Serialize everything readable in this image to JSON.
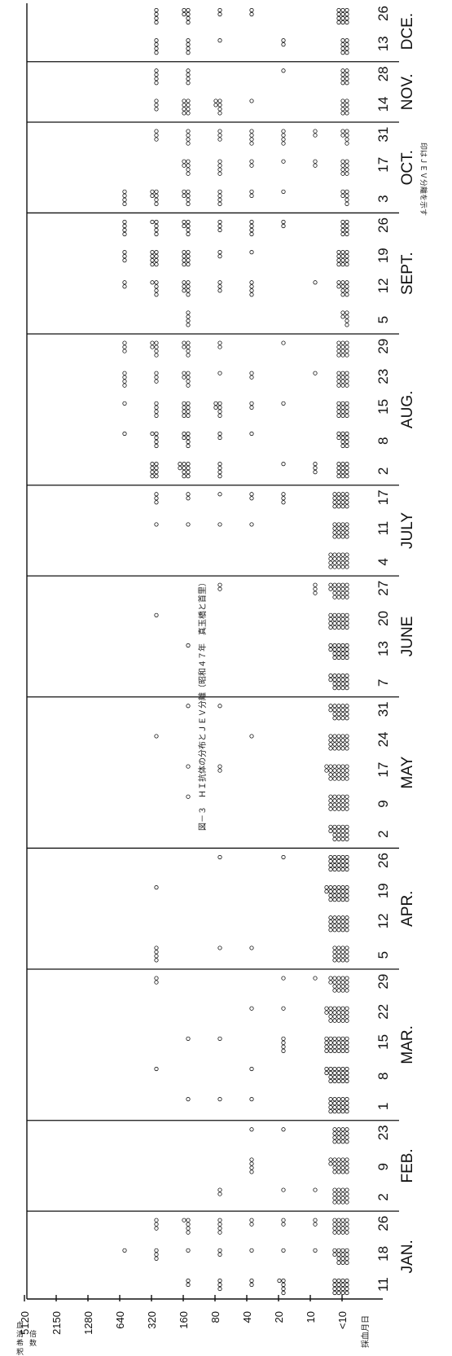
{
  "page": {
    "title": "図－３　ＨＩ抗体の分布とＪＥＶ分離（昭和４７年　真玉橋と首里）",
    "jev_note": "印はＪＥＶ分離を示す",
    "xlabel": "採血月日",
    "ylabel_chars": [
      "血",
      "清",
      "希",
      "釈",
      "倍",
      "数"
    ]
  },
  "chart_data": {
    "type": "scatter",
    "title": "図－３　ＨＩ抗体の分布とＪＥＶ分離（昭和４７年　真玉橋と首里）",
    "xlabel": "採血月日",
    "ylabel": "血清希釈倍数",
    "ytick_labels": [
      "<10",
      "10",
      "20",
      "40",
      "80",
      "160",
      "320",
      "640",
      "1280",
      "2150",
      "5120"
    ],
    "months": [
      {
        "label": "JAN.",
        "days": [
          "11",
          "18",
          "26"
        ]
      },
      {
        "label": "FEB.",
        "days": [
          "2",
          "9",
          "23"
        ]
      },
      {
        "label": "MAR.",
        "days": [
          "1",
          "8",
          "15",
          "22",
          "29"
        ]
      },
      {
        "label": "APR.",
        "days": [
          "5",
          "12",
          "19",
          "26"
        ]
      },
      {
        "label": "MAY",
        "days": [
          "2",
          "9",
          "17",
          "24",
          "31"
        ]
      },
      {
        "label": "JUNE",
        "days": [
          "7",
          "13",
          "20",
          "27"
        ]
      },
      {
        "label": "JULY",
        "days": [
          "4",
          "11",
          "17"
        ]
      },
      {
        "label": "AUG.",
        "days": [
          "2",
          "8",
          "15",
          "23",
          "29"
        ]
      },
      {
        "label": "SEPT.",
        "days": [
          "5",
          "12",
          "19",
          "26"
        ]
      },
      {
        "label": "OCT.",
        "days": [
          "3",
          "17",
          "31"
        ]
      },
      {
        "label": "NOV.",
        "days": [
          "14",
          "28"
        ]
      },
      {
        "label": "DCE.",
        "days": [
          "13",
          "26"
        ]
      }
    ],
    "grid": "vertical lines between months",
    "counts_note": "counts of sera per titer per sampling date (approximate)",
    "dates": [
      {
        "date": "JAN. 11",
        "counts": {
          "<10": 16,
          "10": 0,
          "20": 5,
          "40": 2,
          "80": 3,
          "160": 2,
          "320": 0,
          "640": 0
        }
      },
      {
        "date": "JAN. 18",
        "counts": {
          "<10": 14,
          "10": 1,
          "20": 1,
          "40": 1,
          "80": 2,
          "160": 1,
          "320": 3,
          "640": 1
        }
      },
      {
        "date": "JAN. 26",
        "counts": {
          "<10": 16,
          "10": 2,
          "20": 2,
          "40": 2,
          "80": 4,
          "160": 5,
          "320": 3,
          "640": 0
        }
      },
      {
        "date": "FEB. 2",
        "counts": {
          "<10": 16,
          "10": 1,
          "20": 1,
          "40": 0,
          "80": 2,
          "160": 0,
          "320": 0,
          "640": 0
        }
      },
      {
        "date": "FEB. 9",
        "counts": {
          "<10": 18,
          "10": 0,
          "20": 0,
          "40": 4,
          "80": 0,
          "160": 0,
          "320": 0,
          "640": 0
        }
      },
      {
        "date": "FEB. 23",
        "counts": {
          "<10": 16,
          "10": 0,
          "20": 1,
          "40": 1,
          "80": 0,
          "160": 0,
          "320": 0,
          "640": 0
        }
      },
      {
        "date": "MAR. 1",
        "counts": {
          "<10": 20,
          "10": 0,
          "20": 0,
          "40": 1,
          "80": 1,
          "160": 1,
          "320": 0,
          "640": 0
        }
      },
      {
        "date": "MAR. 8",
        "counts": {
          "<10": 22,
          "10": 0,
          "20": 0,
          "40": 1,
          "80": 0,
          "160": 0,
          "320": 1,
          "640": 0
        }
      },
      {
        "date": "MAR. 15",
        "counts": {
          "<10": 24,
          "10": 0,
          "20": 4,
          "40": 0,
          "80": 1,
          "160": 1,
          "320": 0,
          "640": 0
        }
      },
      {
        "date": "MAR. 22",
        "counts": {
          "<10": 22,
          "10": 0,
          "20": 1,
          "40": 1,
          "80": 0,
          "160": 0,
          "320": 0,
          "640": 0
        }
      },
      {
        "date": "MAR. 29",
        "counts": {
          "<10": 18,
          "10": 1,
          "20": 1,
          "40": 0,
          "80": 0,
          "160": 0,
          "320": 2,
          "640": 0
        }
      },
      {
        "date": "APR. 5",
        "counts": {
          "<10": 16,
          "10": 0,
          "20": 0,
          "40": 1,
          "80": 1,
          "160": 0,
          "320": 4,
          "640": 0
        }
      },
      {
        "date": "APR. 12",
        "counts": {
          "<10": 20,
          "10": 0,
          "20": 0,
          "40": 0,
          "80": 0,
          "160": 0,
          "320": 0,
          "640": 0
        }
      },
      {
        "date": "APR. 19",
        "counts": {
          "<10": 22,
          "10": 0,
          "20": 0,
          "40": 0,
          "80": 0,
          "160": 0,
          "320": 1,
          "640": 0
        }
      },
      {
        "date": "APR. 26",
        "counts": {
          "<10": 20,
          "10": 0,
          "20": 1,
          "40": 0,
          "80": 1,
          "160": 0,
          "320": 0,
          "640": 0
        }
      },
      {
        "date": "MAY 2",
        "counts": {
          "<10": 18,
          "10": 0,
          "20": 0,
          "40": 0,
          "80": 0,
          "160": 0,
          "320": 0,
          "640": 0
        }
      },
      {
        "date": "MAY 9",
        "counts": {
          "<10": 20,
          "10": 0,
          "20": 0,
          "40": 0,
          "80": 0,
          "160": 1,
          "320": 0,
          "640": 0
        }
      },
      {
        "date": "MAY 17",
        "counts": {
          "<10": 22,
          "10": 0,
          "20": 0,
          "40": 0,
          "80": 2,
          "160": 1,
          "320": 0,
          "640": 0
        }
      },
      {
        "date": "MAY 24",
        "counts": {
          "<10": 20,
          "10": 0,
          "20": 0,
          "40": 1,
          "80": 0,
          "160": 0,
          "320": 1,
          "640": 0
        }
      },
      {
        "date": "MAY 31",
        "counts": {
          "<10": 18,
          "10": 0,
          "20": 0,
          "40": 0,
          "80": 1,
          "160": 1,
          "320": 0,
          "640": 0
        }
      },
      {
        "date": "JUNE 7",
        "counts": {
          "<10": 18,
          "10": 0,
          "20": 0,
          "40": 0,
          "80": 0,
          "160": 0,
          "320": 0,
          "640": 0
        }
      },
      {
        "date": "JUNE 13",
        "counts": {
          "<10": 18,
          "10": 0,
          "20": 0,
          "40": 0,
          "80": 0,
          "160": 1,
          "320": 0,
          "640": 0
        }
      },
      {
        "date": "JUNE 20",
        "counts": {
          "<10": 20,
          "10": 0,
          "20": 0,
          "40": 0,
          "80": 0,
          "160": 0,
          "320": 1,
          "640": 0
        }
      },
      {
        "date": "JUNE 27",
        "counts": {
          "<10": 18,
          "10": 3,
          "20": 0,
          "40": 0,
          "80": 2,
          "160": 0,
          "320": 0,
          "640": 0
        }
      },
      {
        "date": "JULY 4",
        "counts": {
          "<10": 20,
          "10": 0,
          "20": 0,
          "40": 0,
          "80": 0,
          "160": 0,
          "320": 0,
          "640": 0
        }
      },
      {
        "date": "JULY 11",
        "counts": {
          "<10": 16,
          "10": 0,
          "20": 0,
          "40": 1,
          "80": 1,
          "160": 1,
          "320": 1,
          "640": 0
        }
      },
      {
        "date": "JULY 17",
        "counts": {
          "<10": 16,
          "10": 0,
          "20": 3,
          "40": 2,
          "80": 1,
          "160": 2,
          "320": 3,
          "640": 0
        }
      },
      {
        "date": "AUG. 2",
        "counts": {
          "<10": 12,
          "10": 3,
          "20": 1,
          "40": 0,
          "80": 4,
          "160": 10,
          "320": 8,
          "640": 0
        }
      },
      {
        "date": "AUG. 8",
        "counts": {
          "<10": 10,
          "10": 0,
          "20": 0,
          "40": 1,
          "80": 2,
          "160": 6,
          "320": 5,
          "640": 1
        }
      },
      {
        "date": "AUG. 15",
        "counts": {
          "<10": 12,
          "10": 0,
          "20": 1,
          "40": 2,
          "80": 6,
          "160": 8,
          "320": 4,
          "640": 1
        }
      },
      {
        "date": "AUG. 23",
        "counts": {
          "<10": 12,
          "10": 1,
          "20": 0,
          "40": 2,
          "80": 1,
          "160": 6,
          "320": 3,
          "640": 4
        }
      },
      {
        "date": "AUG. 29",
        "counts": {
          "<10": 12,
          "10": 0,
          "20": 1,
          "40": 0,
          "80": 2,
          "160": 6,
          "320": 6,
          "640": 3
        }
      },
      {
        "date": "SEPT. 5",
        "counts": {
          "<10": 6,
          "10": 0,
          "20": 0,
          "40": 0,
          "80": 0,
          "160": 4,
          "320": 0,
          "640": 0
        }
      },
      {
        "date": "SEPT. 12",
        "counts": {
          "<10": 10,
          "10": 1,
          "20": 0,
          "40": 4,
          "80": 3,
          "160": 7,
          "320": 5,
          "640": 2
        }
      },
      {
        "date": "SEPT. 19",
        "counts": {
          "<10": 12,
          "10": 0,
          "20": 0,
          "40": 1,
          "80": 2,
          "160": 8,
          "320": 8,
          "640": 3
        }
      },
      {
        "date": "SEPT. 26",
        "counts": {
          "<10": 8,
          "10": 0,
          "20": 2,
          "40": 4,
          "80": 3,
          "160": 6,
          "320": 5,
          "640": 4
        }
      },
      {
        "date": "OCT. 3",
        "counts": {
          "<10": 6,
          "10": 0,
          "20": 1,
          "40": 2,
          "80": 4,
          "160": 6,
          "320": 6,
          "640": 4
        }
      },
      {
        "date": "OCT. 17",
        "counts": {
          "<10": 8,
          "10": 2,
          "20": 1,
          "40": 2,
          "80": 4,
          "160": 6,
          "320": 0,
          "640": 0
        }
      },
      {
        "date": "OCT. 31",
        "counts": {
          "<10": 6,
          "10": 2,
          "20": 4,
          "40": 4,
          "80": 3,
          "160": 4,
          "320": 3,
          "640": 0
        }
      },
      {
        "date": "NOV. 14",
        "counts": {
          "<10": 8,
          "10": 0,
          "20": 0,
          "40": 1,
          "80": 6,
          "160": 8,
          "320": 3,
          "640": 0
        }
      },
      {
        "date": "NOV. 28",
        "counts": {
          "<10": 8,
          "10": 0,
          "20": 1,
          "40": 0,
          "80": 0,
          "160": 4,
          "320": 4,
          "640": 0
        }
      },
      {
        "date": "DCE. 13",
        "counts": {
          "<10": 8,
          "10": 0,
          "20": 2,
          "40": 0,
          "80": 1,
          "160": 4,
          "320": 4,
          "640": 0
        }
      },
      {
        "date": "DCE. 26",
        "counts": {
          "<10": 12,
          "10": 0,
          "20": 0,
          "40": 2,
          "80": 2,
          "160": 6,
          "320": 4,
          "640": 0
        }
      }
    ]
  }
}
